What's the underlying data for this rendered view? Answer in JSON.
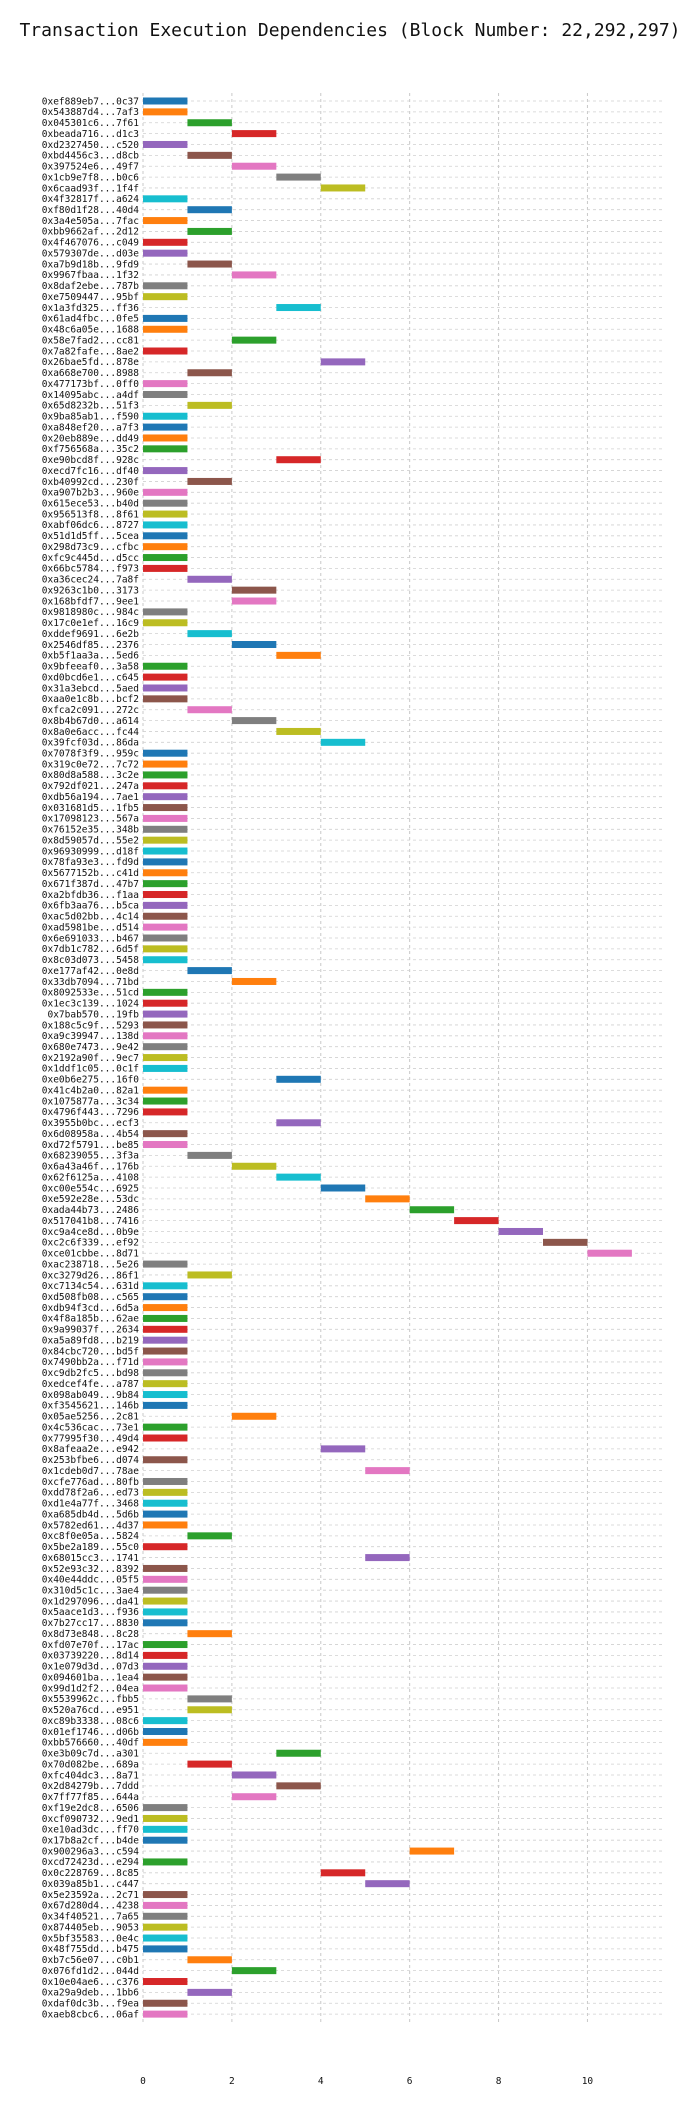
{
  "chart_data": {
    "type": "bar",
    "orientation": "horizontal-gantt",
    "title": "Transaction Execution Dependencies (Block Number: 22,292,297)",
    "xlabel": "",
    "ylabel": "",
    "xlim": [
      0,
      11.7
    ],
    "xticks": [
      0,
      2,
      4,
      6,
      8,
      10
    ],
    "grid": true,
    "palette": [
      "#1f77b4",
      "#ff7f0e",
      "#2ca02c",
      "#d62728",
      "#9467bd",
      "#8c564b",
      "#e377c2",
      "#7f7f7f",
      "#bcbd22",
      "#17becf"
    ],
    "transactions": [
      {
        "tx": "0xef889eb7...0c37",
        "start": 0,
        "end": 1
      },
      {
        "tx": "0x543887d4...7af3",
        "start": 0,
        "end": 1
      },
      {
        "tx": "0x045301c6...7f61",
        "start": 1,
        "end": 2
      },
      {
        "tx": "0xbeada716...d1c3",
        "start": 2,
        "end": 3
      },
      {
        "tx": "0xd2327450...c520",
        "start": 0,
        "end": 1
      },
      {
        "tx": "0xbd4456c3...d8cb",
        "start": 1,
        "end": 2
      },
      {
        "tx": "0x397524e6...49f7",
        "start": 2,
        "end": 3
      },
      {
        "tx": "0x1cb9e7f8...b0c6",
        "start": 3,
        "end": 4
      },
      {
        "tx": "0x6caad93f...1f4f",
        "start": 4,
        "end": 5
      },
      {
        "tx": "0x4f32817f...a624",
        "start": 0,
        "end": 1
      },
      {
        "tx": "0xf80d1f28...40d4",
        "start": 1,
        "end": 2
      },
      {
        "tx": "0x3a4e505a...7fac",
        "start": 0,
        "end": 1
      },
      {
        "tx": "0xbb9662af...2d12",
        "start": 1,
        "end": 2
      },
      {
        "tx": "0x4f467076...c049",
        "start": 0,
        "end": 1
      },
      {
        "tx": "0x579307de...d03e",
        "start": 0,
        "end": 1
      },
      {
        "tx": "0xa7b9d18b...9fd9",
        "start": 1,
        "end": 2
      },
      {
        "tx": "0x9967fbaa...1f32",
        "start": 2,
        "end": 3
      },
      {
        "tx": "0x8daf2ebe...787b",
        "start": 0,
        "end": 1
      },
      {
        "tx": "0xe7509447...95bf",
        "start": 0,
        "end": 1
      },
      {
        "tx": "0x1a3fd325...ff36",
        "start": 3,
        "end": 4
      },
      {
        "tx": "0x61ad4fbc...0fe5",
        "start": 0,
        "end": 1
      },
      {
        "tx": "0x48c6a05e...1688",
        "start": 0,
        "end": 1
      },
      {
        "tx": "0x58e7fad2...cc81",
        "start": 2,
        "end": 3
      },
      {
        "tx": "0x7a82fafe...8ae2",
        "start": 0,
        "end": 1
      },
      {
        "tx": "0x26bae5fd...878e",
        "start": 4,
        "end": 5
      },
      {
        "tx": "0xa668e700...8988",
        "start": 1,
        "end": 2
      },
      {
        "tx": "0x477173bf...0ff0",
        "start": 0,
        "end": 1
      },
      {
        "tx": "0x14095abc...a4df",
        "start": 0,
        "end": 1
      },
      {
        "tx": "0x65d8232b...51f3",
        "start": 1,
        "end": 2
      },
      {
        "tx": "0x9ba85ab1...f590",
        "start": 0,
        "end": 1
      },
      {
        "tx": "0xa848ef20...a7f3",
        "start": 0,
        "end": 1
      },
      {
        "tx": "0x20eb889e...dd49",
        "start": 0,
        "end": 1
      },
      {
        "tx": "0xf756568a...35c2",
        "start": 0,
        "end": 1
      },
      {
        "tx": "0xe90bcd8f...928c",
        "start": 3,
        "end": 4
      },
      {
        "tx": "0xecd7fc16...df40",
        "start": 0,
        "end": 1
      },
      {
        "tx": "0xb40992cd...230f",
        "start": 1,
        "end": 2
      },
      {
        "tx": "0xa907b2b3...960e",
        "start": 0,
        "end": 1
      },
      {
        "tx": "0x615ece53...b40d",
        "start": 0,
        "end": 1
      },
      {
        "tx": "0x956513f8...8f61",
        "start": 0,
        "end": 1
      },
      {
        "tx": "0xabf06dc6...8727",
        "start": 0,
        "end": 1
      },
      {
        "tx": "0x51d1d5ff...5cea",
        "start": 0,
        "end": 1
      },
      {
        "tx": "0x298d73c9...cfbc",
        "start": 0,
        "end": 1
      },
      {
        "tx": "0xfc9c445d...d5cc",
        "start": 0,
        "end": 1
      },
      {
        "tx": "0x66bc5784...f973",
        "start": 0,
        "end": 1
      },
      {
        "tx": "0xa36cec24...7a8f",
        "start": 1,
        "end": 2
      },
      {
        "tx": "0x9263c1b0...3173",
        "start": 2,
        "end": 3
      },
      {
        "tx": "0x168bfdf7...9ee1",
        "start": 2,
        "end": 3
      },
      {
        "tx": "0x9818980c...984c",
        "start": 0,
        "end": 1
      },
      {
        "tx": "0x17c0e1ef...16c9",
        "start": 0,
        "end": 1
      },
      {
        "tx": "0xddef9691...6e2b",
        "start": 1,
        "end": 2
      },
      {
        "tx": "0x2546df85...2376",
        "start": 2,
        "end": 3
      },
      {
        "tx": "0xb5f1aa3a...5ed6",
        "start": 3,
        "end": 4
      },
      {
        "tx": "0x9bfeeaf0...3a58",
        "start": 0,
        "end": 1
      },
      {
        "tx": "0xd0bcd6e1...c645",
        "start": 0,
        "end": 1
      },
      {
        "tx": "0x31a3ebcd...5aed",
        "start": 0,
        "end": 1
      },
      {
        "tx": "0xaa0e1c8b...bcf2",
        "start": 0,
        "end": 1
      },
      {
        "tx": "0xfca2c091...272c",
        "start": 1,
        "end": 2
      },
      {
        "tx": "0x8b4b67d0...a614",
        "start": 2,
        "end": 3
      },
      {
        "tx": "0x8a0e6acc...fc44",
        "start": 3,
        "end": 4
      },
      {
        "tx": "0x39fcf03d...86da",
        "start": 4,
        "end": 5
      },
      {
        "tx": "0x7078f3f9...959c",
        "start": 0,
        "end": 1
      },
      {
        "tx": "0x319c0e72...7c72",
        "start": 0,
        "end": 1
      },
      {
        "tx": "0x80d8a588...3c2e",
        "start": 0,
        "end": 1
      },
      {
        "tx": "0x792df021...247a",
        "start": 0,
        "end": 1
      },
      {
        "tx": "0xdb56a194...7ae1",
        "start": 0,
        "end": 1
      },
      {
        "tx": "0x031681d5...1fb5",
        "start": 0,
        "end": 1
      },
      {
        "tx": "0x17098123...567a",
        "start": 0,
        "end": 1
      },
      {
        "tx": "0x76152e35...348b",
        "start": 0,
        "end": 1
      },
      {
        "tx": "0x8d59057d...55e2",
        "start": 0,
        "end": 1
      },
      {
        "tx": "0x96930999...d18f",
        "start": 0,
        "end": 1
      },
      {
        "tx": "0x78fa93e3...fd9d",
        "start": 0,
        "end": 1
      },
      {
        "tx": "0x5677152b...c41d",
        "start": 0,
        "end": 1
      },
      {
        "tx": "0x671f387d...47b7",
        "start": 0,
        "end": 1
      },
      {
        "tx": "0xa2bfdb36...f1aa",
        "start": 0,
        "end": 1
      },
      {
        "tx": "0x6fb3aa76...b5ca",
        "start": 0,
        "end": 1
      },
      {
        "tx": "0xac5d02bb...4c14",
        "start": 0,
        "end": 1
      },
      {
        "tx": "0xad5981be...d514",
        "start": 0,
        "end": 1
      },
      {
        "tx": "0x6e691033...b467",
        "start": 0,
        "end": 1
      },
      {
        "tx": "0x7db1c782...6d5f",
        "start": 0,
        "end": 1
      },
      {
        "tx": "0x8c03d073...5458",
        "start": 0,
        "end": 1
      },
      {
        "tx": "0xe177af42...0e8d",
        "start": 1,
        "end": 2
      },
      {
        "tx": "0x33db7094...71bd",
        "start": 2,
        "end": 3
      },
      {
        "tx": "0x8092533e...51cd",
        "start": 0,
        "end": 1
      },
      {
        "tx": "0x1ec3c139...1024",
        "start": 0,
        "end": 1
      },
      {
        "tx": "0x7bab570...19fb",
        "start": 0,
        "end": 1
      },
      {
        "tx": "0x188c5c9f...5293",
        "start": 0,
        "end": 1
      },
      {
        "tx": "0xa9c39947...138d",
        "start": 0,
        "end": 1
      },
      {
        "tx": "0x680e7473...9e42",
        "start": 0,
        "end": 1
      },
      {
        "tx": "0x2192a90f...9ec7",
        "start": 0,
        "end": 1
      },
      {
        "tx": "0x1ddf1c05...0c1f",
        "start": 0,
        "end": 1
      },
      {
        "tx": "0xe0b6e275...16f0",
        "start": 3,
        "end": 4
      },
      {
        "tx": "0x41c4b2a0...82a1",
        "start": 0,
        "end": 1
      },
      {
        "tx": "0x1075877a...3c34",
        "start": 0,
        "end": 1
      },
      {
        "tx": "0x4796f443...7296",
        "start": 0,
        "end": 1
      },
      {
        "tx": "0x3955b0bc...ecf3",
        "start": 3,
        "end": 4
      },
      {
        "tx": "0x6d08958a...4b54",
        "start": 0,
        "end": 1
      },
      {
        "tx": "0xd72f5791...be85",
        "start": 0,
        "end": 1
      },
      {
        "tx": "0x68239055...3f3a",
        "start": 1,
        "end": 2
      },
      {
        "tx": "0x6a43a46f...176b",
        "start": 2,
        "end": 3
      },
      {
        "tx": "0x62f6125a...4108",
        "start": 3,
        "end": 4
      },
      {
        "tx": "0xc00e554c...6925",
        "start": 4,
        "end": 5
      },
      {
        "tx": "0xe592e28e...53dc",
        "start": 5,
        "end": 6
      },
      {
        "tx": "0xada44b73...2486",
        "start": 6,
        "end": 7
      },
      {
        "tx": "0x517041b8...7416",
        "start": 7,
        "end": 8
      },
      {
        "tx": "0xc9a4ce8d...0b9e",
        "start": 8,
        "end": 9
      },
      {
        "tx": "0xc2c6f339...ef92",
        "start": 9,
        "end": 10
      },
      {
        "tx": "0xce01cbbe...8d71",
        "start": 10,
        "end": 11
      },
      {
        "tx": "0xac238718...5e26",
        "start": 0,
        "end": 1
      },
      {
        "tx": "0xc3279d26...86f1",
        "start": 1,
        "end": 2
      },
      {
        "tx": "0xc7134c54...631d",
        "start": 0,
        "end": 1
      },
      {
        "tx": "0xd508fb08...c565",
        "start": 0,
        "end": 1
      },
      {
        "tx": "0xdb94f3cd...6d5a",
        "start": 0,
        "end": 1
      },
      {
        "tx": "0x4f8a185b...62ae",
        "start": 0,
        "end": 1
      },
      {
        "tx": "0x9a99037f...2634",
        "start": 0,
        "end": 1
      },
      {
        "tx": "0xa5a89fd8...b219",
        "start": 0,
        "end": 1
      },
      {
        "tx": "0x84cbc720...bd5f",
        "start": 0,
        "end": 1
      },
      {
        "tx": "0x7490bb2a...f71d",
        "start": 0,
        "end": 1
      },
      {
        "tx": "0xc9db2fc5...bd98",
        "start": 0,
        "end": 1
      },
      {
        "tx": "0xedcef4fe...a787",
        "start": 0,
        "end": 1
      },
      {
        "tx": "0x098ab049...9b84",
        "start": 0,
        "end": 1
      },
      {
        "tx": "0xf3545621...146b",
        "start": 0,
        "end": 1
      },
      {
        "tx": "0x05ae5256...2c81",
        "start": 2,
        "end": 3
      },
      {
        "tx": "0x4c536cac...73e1",
        "start": 0,
        "end": 1
      },
      {
        "tx": "0x77995f30...49d4",
        "start": 0,
        "end": 1
      },
      {
        "tx": "0x8afeaa2e...e942",
        "start": 4,
        "end": 5
      },
      {
        "tx": "0x253bfbe6...d074",
        "start": 0,
        "end": 1
      },
      {
        "tx": "0x1cdeb0d7...78ae",
        "start": 5,
        "end": 6
      },
      {
        "tx": "0xcfe776ad...80fb",
        "start": 0,
        "end": 1
      },
      {
        "tx": "0xdd78f2a6...ed73",
        "start": 0,
        "end": 1
      },
      {
        "tx": "0xd1e4a77f...3468",
        "start": 0,
        "end": 1
      },
      {
        "tx": "0xa685db4d...5d6b",
        "start": 0,
        "end": 1
      },
      {
        "tx": "0x5782ed61...4d37",
        "start": 0,
        "end": 1
      },
      {
        "tx": "0xc8f0e05a...5824",
        "start": 1,
        "end": 2
      },
      {
        "tx": "0x5be2a189...55c0",
        "start": 0,
        "end": 1
      },
      {
        "tx": "0x68015cc3...1741",
        "start": 5,
        "end": 6
      },
      {
        "tx": "0x52e93c32...8392",
        "start": 0,
        "end": 1
      },
      {
        "tx": "0x40e44ddc...05f5",
        "start": 0,
        "end": 1
      },
      {
        "tx": "0x310d5c1c...3ae4",
        "start": 0,
        "end": 1
      },
      {
        "tx": "0x1d297096...da41",
        "start": 0,
        "end": 1
      },
      {
        "tx": "0x5aace1d3...f936",
        "start": 0,
        "end": 1
      },
      {
        "tx": "0x7b27cc17...8830",
        "start": 0,
        "end": 1
      },
      {
        "tx": "0x8d73e848...8c28",
        "start": 1,
        "end": 2
      },
      {
        "tx": "0xfd07e70f...17ac",
        "start": 0,
        "end": 1
      },
      {
        "tx": "0x03739220...8d14",
        "start": 0,
        "end": 1
      },
      {
        "tx": "0x1e079d3d...07d3",
        "start": 0,
        "end": 1
      },
      {
        "tx": "0x094601ba...1ea4",
        "start": 0,
        "end": 1
      },
      {
        "tx": "0x99d1d2f2...04ea",
        "start": 0,
        "end": 1
      },
      {
        "tx": "0x5539962c...fbb5",
        "start": 1,
        "end": 2
      },
      {
        "tx": "0x520a76cd...e951",
        "start": 1,
        "end": 2
      },
      {
        "tx": "0xc89b3338...08c6",
        "start": 0,
        "end": 1
      },
      {
        "tx": "0x01ef1746...d06b",
        "start": 0,
        "end": 1
      },
      {
        "tx": "0xbb576660...40df",
        "start": 0,
        "end": 1
      },
      {
        "tx": "0xe3b09c7d...a301",
        "start": 3,
        "end": 4
      },
      {
        "tx": "0x70d082be...689a",
        "start": 1,
        "end": 2
      },
      {
        "tx": "0xfc404dc3...8a71",
        "start": 2,
        "end": 3
      },
      {
        "tx": "0x2d84279b...7ddd",
        "start": 3,
        "end": 4
      },
      {
        "tx": "0x7ff77f85...644a",
        "start": 2,
        "end": 3
      },
      {
        "tx": "0xf19e2dc8...6506",
        "start": 0,
        "end": 1
      },
      {
        "tx": "0xcf090732...9ed1",
        "start": 0,
        "end": 1
      },
      {
        "tx": "0xe10ad3dc...ff70",
        "start": 0,
        "end": 1
      },
      {
        "tx": "0x17b8a2cf...b4de",
        "start": 0,
        "end": 1
      },
      {
        "tx": "0x900296a3...c594",
        "start": 6,
        "end": 7
      },
      {
        "tx": "0xcd72423d...e294",
        "start": 0,
        "end": 1
      },
      {
        "tx": "0x0c228769...8c85",
        "start": 4,
        "end": 5
      },
      {
        "tx": "0x039a85b1...c447",
        "start": 5,
        "end": 6
      },
      {
        "tx": "0x5e23592a...2c71",
        "start": 0,
        "end": 1
      },
      {
        "tx": "0x67d280d4...4238",
        "start": 0,
        "end": 1
      },
      {
        "tx": "0x34f40521...7a65",
        "start": 0,
        "end": 1
      },
      {
        "tx": "0x874405eb...9053",
        "start": 0,
        "end": 1
      },
      {
        "tx": "0x5bf35583...0e4c",
        "start": 0,
        "end": 1
      },
      {
        "tx": "0x48f755dd...b475",
        "start": 0,
        "end": 1
      },
      {
        "tx": "0xb7c56e07...c0b1",
        "start": 1,
        "end": 2
      },
      {
        "tx": "0x076fd1d2...044d",
        "start": 2,
        "end": 3
      },
      {
        "tx": "0x10e04ae6...c376",
        "start": 0,
        "end": 1
      },
      {
        "tx": "0xa29a9deb...1bb6",
        "start": 1,
        "end": 2
      },
      {
        "tx": "0xdaf0dc3b...f9ea",
        "start": 0,
        "end": 1
      },
      {
        "tx": "0xaeb8cbc6...06af",
        "start": 0,
        "end": 1
      }
    ]
  }
}
